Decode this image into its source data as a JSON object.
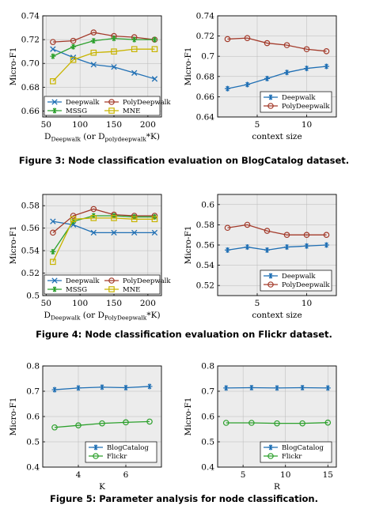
{
  "figures": [
    {
      "caption": "Figure 3: Node classification evaluation on BlogCatalog dataset."
    },
    {
      "caption": "Figure 4: Node classification evaluation on Flickr dataset."
    },
    {
      "caption": "Figure 5: Parameter analysis for node classification."
    }
  ],
  "colors": {
    "blue": "#1f6fb4",
    "red": "#a33a2a",
    "green": "#2ca02c",
    "olive": "#c8b400",
    "plot_bg": "#ececec"
  },
  "chart_data": [
    {
      "type": "line",
      "figure": 0,
      "xlabel": "D",
      "xlabel_parts": [
        "D",
        "Deepwalk",
        " (or D",
        "polydeepwalk",
        "*K)"
      ],
      "ylabel": "Micro-F1",
      "xlim": [
        45,
        220
      ],
      "ylim": [
        0.655,
        0.74
      ],
      "xticks": [
        50,
        100,
        150,
        200
      ],
      "yticks": [
        0.66,
        0.68,
        0.7,
        0.72,
        0.74
      ],
      "ytick_decimals": 2,
      "grid": true,
      "legend": "bottom-inside-2col",
      "series": [
        {
          "name": "Deepwalk",
          "color": "blue",
          "marker": "x",
          "x": [
            60,
            90,
            120,
            150,
            180,
            210
          ],
          "y": [
            0.712,
            0.705,
            0.699,
            0.697,
            0.692,
            0.687
          ]
        },
        {
          "name": "PolyDeepwalk",
          "color": "red",
          "marker": "o",
          "x": [
            60,
            90,
            120,
            150,
            180,
            210
          ],
          "y": [
            0.718,
            0.719,
            0.726,
            0.723,
            0.722,
            0.72
          ]
        },
        {
          "name": "MSSG",
          "color": "green",
          "marker": "star",
          "x": [
            60,
            90,
            120,
            150,
            180,
            210
          ],
          "y": [
            0.706,
            0.714,
            0.719,
            0.721,
            0.72,
            0.72
          ]
        },
        {
          "name": "MNE",
          "color": "olive",
          "marker": "square",
          "x": [
            60,
            90,
            120,
            150,
            180,
            210
          ],
          "y": [
            0.685,
            0.703,
            0.709,
            0.71,
            0.712,
            0.712
          ]
        }
      ]
    },
    {
      "type": "line",
      "figure": 0,
      "xlabel": "context size",
      "ylabel": "Micro-F1",
      "xlim": [
        1,
        13
      ],
      "ylim": [
        0.64,
        0.74
      ],
      "xticks": [
        5,
        10
      ],
      "yticks": [
        0.64,
        0.66,
        0.68,
        0.7,
        0.72,
        0.74
      ],
      "ytick_labels": [
        "0.64",
        "0.66",
        "0.68",
        "0.7",
        "0.72",
        "0.74"
      ],
      "grid": true,
      "legend": "bottom-right",
      "series": [
        {
          "name": "Deepwalk",
          "color": "blue",
          "marker": "star",
          "x": [
            2,
            4,
            6,
            8,
            10,
            12
          ],
          "y": [
            0.668,
            0.672,
            0.678,
            0.684,
            0.688,
            0.69
          ]
        },
        {
          "name": "PolyDeepwalk",
          "color": "red",
          "marker": "o",
          "x": [
            2,
            4,
            6,
            8,
            10,
            12
          ],
          "y": [
            0.717,
            0.718,
            0.713,
            0.711,
            0.707,
            0.705
          ]
        }
      ]
    },
    {
      "type": "line",
      "figure": 1,
      "xlabel": "D",
      "xlabel_parts": [
        "D",
        "Deepwalk",
        " (or D",
        "PolyDeepwalk",
        "*K)"
      ],
      "ylabel": "Micro-F1",
      "xlim": [
        45,
        220
      ],
      "ylim": [
        0.5,
        0.59
      ],
      "xticks": [
        50,
        100,
        150,
        200
      ],
      "yticks": [
        0.5,
        0.52,
        0.54,
        0.56,
        0.58
      ],
      "ytick_labels": [
        "0.5",
        "0.52",
        "0.54",
        "0.56",
        "0.58"
      ],
      "grid": true,
      "legend": "bottom-inside-2col",
      "series": [
        {
          "name": "Deepwalk",
          "color": "blue",
          "marker": "x",
          "x": [
            60,
            90,
            120,
            150,
            180,
            210
          ],
          "y": [
            0.566,
            0.563,
            0.556,
            0.556,
            0.556,
            0.556
          ]
        },
        {
          "name": "PolyDeepwalk",
          "color": "red",
          "marker": "o",
          "x": [
            60,
            90,
            120,
            150,
            180,
            210
          ],
          "y": [
            0.556,
            0.571,
            0.577,
            0.572,
            0.571,
            0.571
          ]
        },
        {
          "name": "MSSG",
          "color": "green",
          "marker": "star",
          "x": [
            60,
            90,
            120,
            150,
            180,
            210
          ],
          "y": [
            0.539,
            0.566,
            0.571,
            0.571,
            0.57,
            0.57
          ]
        },
        {
          "name": "MNE",
          "color": "olive",
          "marker": "square",
          "x": [
            60,
            90,
            120,
            150,
            180,
            210
          ],
          "y": [
            0.53,
            0.568,
            0.569,
            0.569,
            0.568,
            0.568
          ]
        }
      ]
    },
    {
      "type": "line",
      "figure": 1,
      "xlabel": "context size",
      "ylabel": "Micro-F1",
      "xlim": [
        1,
        13
      ],
      "ylim": [
        0.51,
        0.61
      ],
      "xticks": [
        5,
        10
      ],
      "yticks": [
        0.52,
        0.54,
        0.56,
        0.58,
        0.6
      ],
      "ytick_labels": [
        "0.52",
        "0.54",
        "0.56",
        "0.58",
        "0.6"
      ],
      "grid": true,
      "legend": "bottom-right",
      "series": [
        {
          "name": "Deepwalk",
          "color": "blue",
          "marker": "star",
          "x": [
            2,
            4,
            6,
            8,
            10,
            12
          ],
          "y": [
            0.555,
            0.558,
            0.555,
            0.558,
            0.559,
            0.56
          ]
        },
        {
          "name": "PolyDeepwalk",
          "color": "red",
          "marker": "o",
          "x": [
            2,
            4,
            6,
            8,
            10,
            12
          ],
          "y": [
            0.577,
            0.58,
            0.574,
            0.57,
            0.57,
            0.57
          ]
        }
      ]
    },
    {
      "type": "line",
      "figure": 2,
      "xlabel": "K",
      "ylabel": "Micro-F1",
      "xlim": [
        2.5,
        7.5
      ],
      "ylim": [
        0.4,
        0.8
      ],
      "xticks": [
        4,
        6
      ],
      "yticks": [
        0.4,
        0.5,
        0.6,
        0.7,
        0.8
      ],
      "ytick_labels": [
        "0.4",
        "0.5",
        "0.6",
        "0.7",
        "0.8"
      ],
      "grid": true,
      "legend": "bottom-right",
      "series": [
        {
          "name": "BlogCatalog",
          "color": "blue",
          "marker": "star",
          "x": [
            3,
            4,
            5,
            6,
            7
          ],
          "y": [
            0.706,
            0.713,
            0.716,
            0.714,
            0.719
          ]
        },
        {
          "name": "Flickr",
          "color": "green",
          "marker": "o",
          "x": [
            3,
            4,
            5,
            6,
            7
          ],
          "y": [
            0.557,
            0.565,
            0.573,
            0.577,
            0.58
          ]
        }
      ]
    },
    {
      "type": "line",
      "figure": 2,
      "xlabel": "R",
      "ylabel": "Micro-F1",
      "xlim": [
        2,
        16
      ],
      "ylim": [
        0.4,
        0.8
      ],
      "xticks": [
        5,
        10,
        15
      ],
      "yticks": [
        0.4,
        0.5,
        0.6,
        0.7,
        0.8
      ],
      "ytick_labels": [
        "0.4",
        "0.5",
        "0.6",
        "0.7",
        "0.8"
      ],
      "grid": true,
      "legend": "bottom-right",
      "series": [
        {
          "name": "BlogCatalog",
          "color": "blue",
          "marker": "star",
          "x": [
            3,
            6,
            9,
            12,
            15
          ],
          "y": [
            0.713,
            0.714,
            0.713,
            0.714,
            0.713
          ]
        },
        {
          "name": "Flickr",
          "color": "green",
          "marker": "o",
          "x": [
            3,
            6,
            9,
            12,
            15
          ],
          "y": [
            0.575,
            0.575,
            0.573,
            0.573,
            0.576
          ]
        }
      ]
    }
  ]
}
